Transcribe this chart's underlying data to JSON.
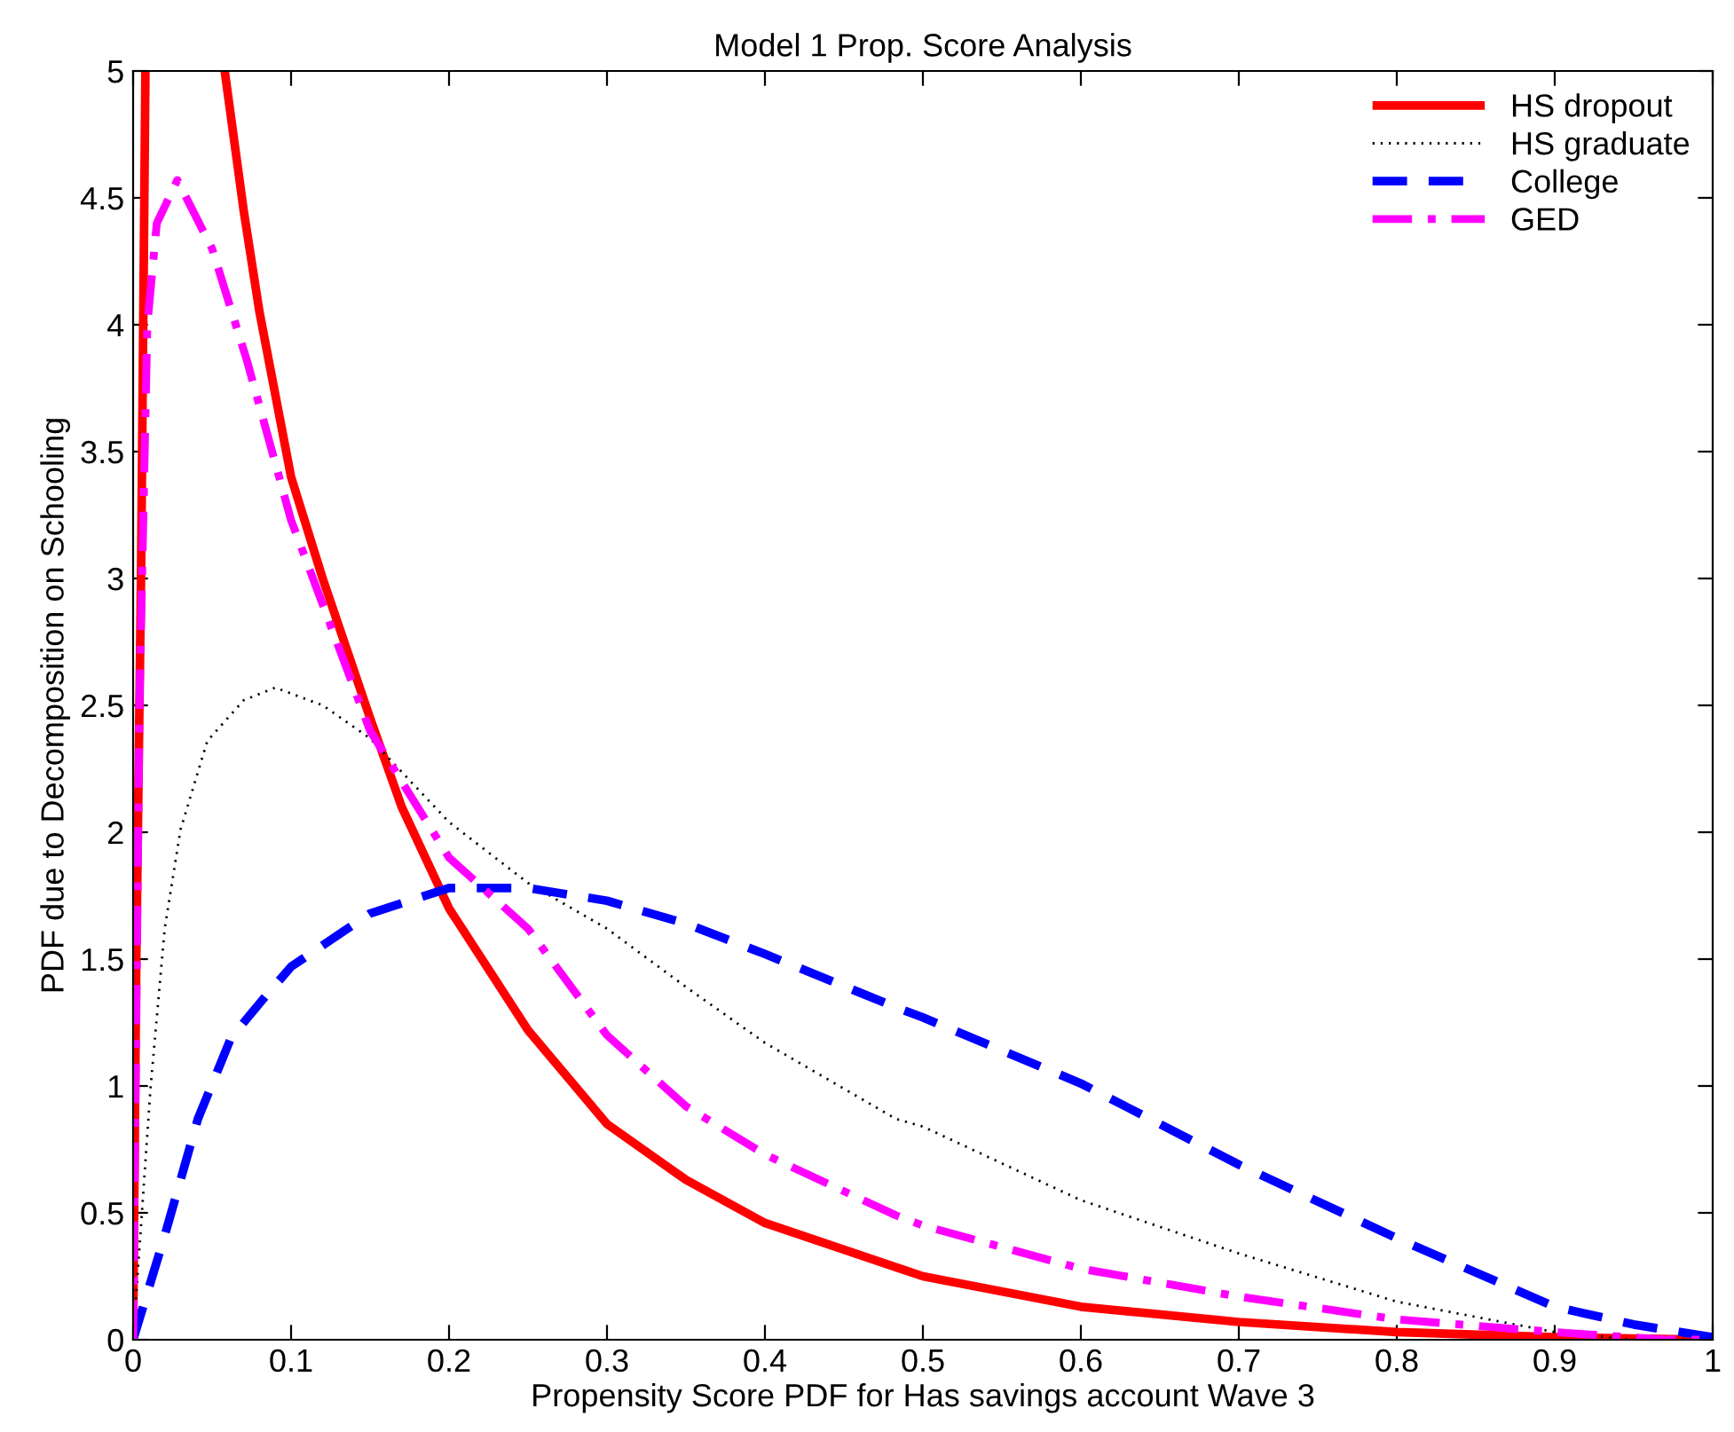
{
  "chart_data": {
    "type": "line",
    "title": "Model 1 Prop. Score Analysis",
    "xlabel": "Propensity Score PDF for Has savings account Wave 3",
    "ylabel": "PDF due to Decomposition on Schooling",
    "xlim": [
      0,
      1
    ],
    "ylim": [
      0,
      5
    ],
    "xticks": [
      0,
      0.1,
      0.2,
      0.3,
      0.4,
      0.5,
      0.6,
      0.7,
      0.8,
      0.9,
      1
    ],
    "yticks": [
      0,
      0.5,
      1,
      1.5,
      2,
      2.5,
      3,
      3.5,
      4,
      4.5,
      5
    ],
    "grid": false,
    "legend": "top right",
    "marker": "none",
    "series": [
      {
        "name": "HS dropout",
        "color": "#ff0000",
        "line_style": "solid",
        "x": [
          0,
          0.002,
          0.005,
          0.0078,
          0.03,
          0.058,
          0.07,
          0.08,
          0.1,
          0.12,
          0.15,
          0.17,
          0.2,
          0.25,
          0.3,
          0.35,
          0.4,
          0.5,
          0.6,
          0.7,
          0.8,
          0.9,
          1
        ],
        "values": [
          0,
          1.5,
          3,
          5,
          null,
          5,
          4.45,
          4.05,
          3.4,
          3.0,
          2.45,
          2.1,
          1.7,
          1.22,
          0.85,
          0.63,
          0.46,
          0.25,
          0.13,
          0.07,
          0.03,
          0.01,
          0
        ]
      },
      {
        "name": "HS graduate",
        "color": "#000000",
        "line_style": "dotted",
        "x": [
          0,
          0.011,
          0.02,
          0.03,
          0.047,
          0.07,
          0.09,
          0.12,
          0.15,
          0.2,
          0.25,
          0.3,
          0.35,
          0.4,
          0.483,
          0.5,
          0.6,
          0.7,
          0.8,
          0.9,
          0.95,
          1
        ],
        "values": [
          0,
          0.99,
          1.62,
          2.01,
          2.36,
          2.52,
          2.57,
          2.5,
          2.37,
          2.04,
          1.8,
          1.62,
          1.39,
          1.17,
          0.87,
          0.84,
          0.55,
          0.34,
          0.15,
          0.03,
          0,
          0
        ]
      },
      {
        "name": "College",
        "color": "#0000ff",
        "line_style": "dashed",
        "x": [
          0,
          0.02,
          0.041,
          0.062,
          0.082,
          0.1,
          0.15,
          0.2,
          0.25,
          0.3,
          0.35,
          0.4,
          0.483,
          0.5,
          0.6,
          0.7,
          0.8,
          0.9,
          0.95,
          1
        ],
        "values": [
          0,
          0.41,
          0.87,
          1.19,
          1.34,
          1.47,
          1.68,
          1.78,
          1.78,
          1.73,
          1.64,
          1.52,
          1.31,
          1.27,
          1.01,
          0.69,
          0.4,
          0.13,
          0.06,
          0.01
        ]
      },
      {
        "name": "GED",
        "color": "#ff00ff",
        "line_style": "dashdot",
        "x": [
          0,
          0.004,
          0.009,
          0.015,
          0.028,
          0.05,
          0.072,
          0.1,
          0.15,
          0.2,
          0.25,
          0.3,
          0.35,
          0.4,
          0.483,
          0.5,
          0.6,
          0.7,
          0.8,
          0.9,
          0.97,
          1
        ],
        "values": [
          0,
          2.5,
          4.0,
          4.4,
          4.57,
          4.3,
          3.86,
          3.23,
          2.4,
          1.9,
          1.62,
          1.2,
          0.92,
          0.73,
          0.49,
          0.45,
          0.28,
          0.17,
          0.08,
          0.03,
          0,
          0
        ]
      }
    ]
  }
}
